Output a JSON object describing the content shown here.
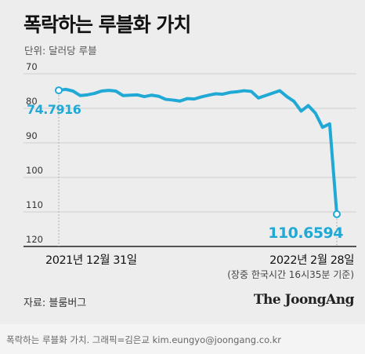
{
  "title": "폭락하는 루블화 가치",
  "unit_label": "단위: 달러당 루블",
  "source": "자료: 블룸버그",
  "logo": "The JoongAng",
  "caption": "폭락하는 루블화 가치. 그래픽=김은교 kim.eungyo@joongang.co.kr",
  "colors": {
    "line": "#21a9d6",
    "axis": "#222222",
    "grid": "#c4c4c4",
    "text": "#111111"
  },
  "chart_data": {
    "type": "line",
    "title": "폭락하는 루블화 가치",
    "ylabel": "단위: 달러당 루블",
    "y_inverted": true,
    "ylim": [
      70,
      120
    ],
    "yticks": [
      70,
      80,
      90,
      100,
      110,
      120
    ],
    "ytick_labels": [
      "70",
      "80",
      "90",
      "100",
      "110",
      "120"
    ],
    "x_start_label": "2021년 12월 31일",
    "x_end_label": "2022년 2월 28일",
    "x_end_note": "(장중 한국시간 16시35분 기준)",
    "start_value_label": "74.7916",
    "end_value_label": "110.6594",
    "series": [
      {
        "values": [
          74.79,
          74.5,
          75.0,
          76.3,
          76.1,
          75.7,
          75.0,
          74.8,
          75.0,
          76.3,
          76.2,
          76.1,
          76.6,
          76.2,
          76.5,
          77.4,
          77.6,
          77.9,
          77.2,
          77.3,
          76.7,
          76.2,
          75.8,
          75.9,
          75.4,
          75.2,
          74.9,
          75.1,
          77.0,
          76.3,
          75.6,
          74.9,
          76.6,
          78.0,
          80.8,
          79.2,
          81.4,
          85.5,
          84.5,
          110.6594
        ]
      }
    ]
  }
}
